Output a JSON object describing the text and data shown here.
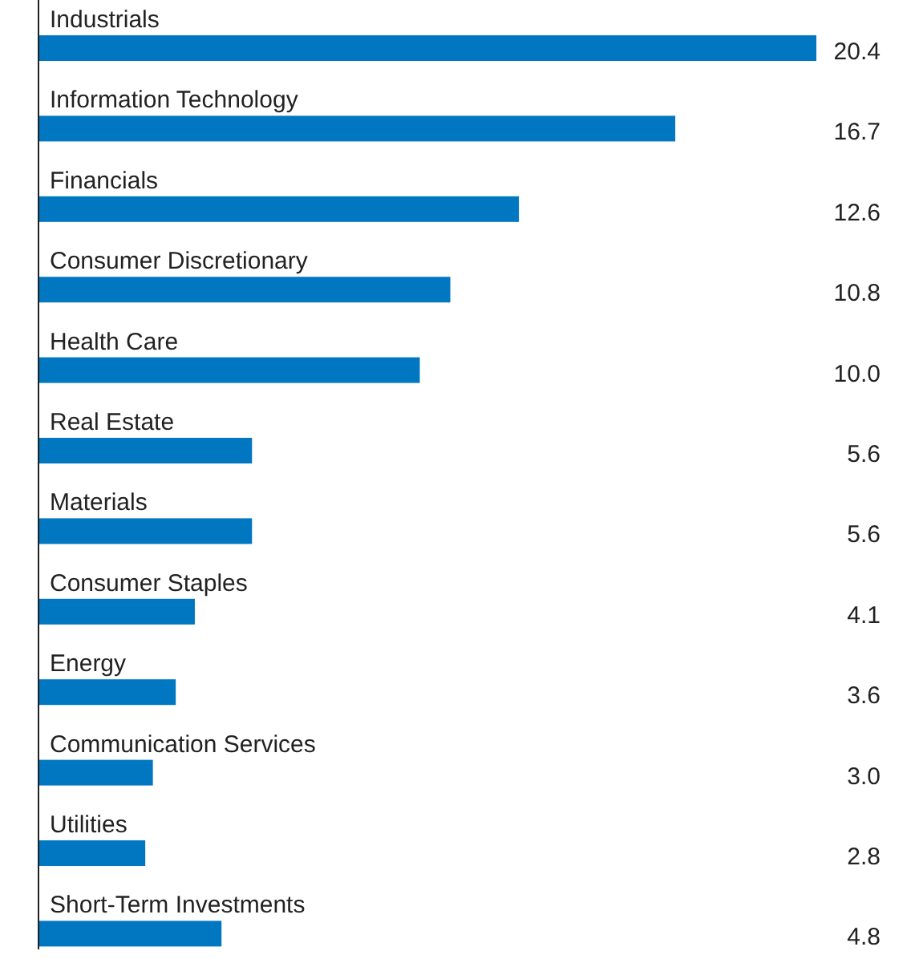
{
  "chart_data": {
    "type": "bar",
    "orientation": "horizontal",
    "categories": [
      "Industrials",
      "Information Technology",
      "Financials",
      "Consumer Discretionary",
      "Health Care",
      "Real Estate",
      "Materials",
      "Consumer Staples",
      "Energy",
      "Communication Services",
      "Utilities",
      "Short-Term Investments"
    ],
    "values": [
      20.4,
      16.7,
      12.6,
      10.8,
      10.0,
      5.6,
      5.6,
      4.1,
      3.6,
      3.0,
      2.8,
      4.8
    ],
    "value_labels": [
      "20.4",
      "16.7",
      "12.6",
      "10.8",
      "10.0",
      "5.6",
      "5.6",
      "4.1",
      "3.6",
      "3.0",
      "2.8",
      "4.8"
    ],
    "color": "#0077c0",
    "relative": false
  }
}
